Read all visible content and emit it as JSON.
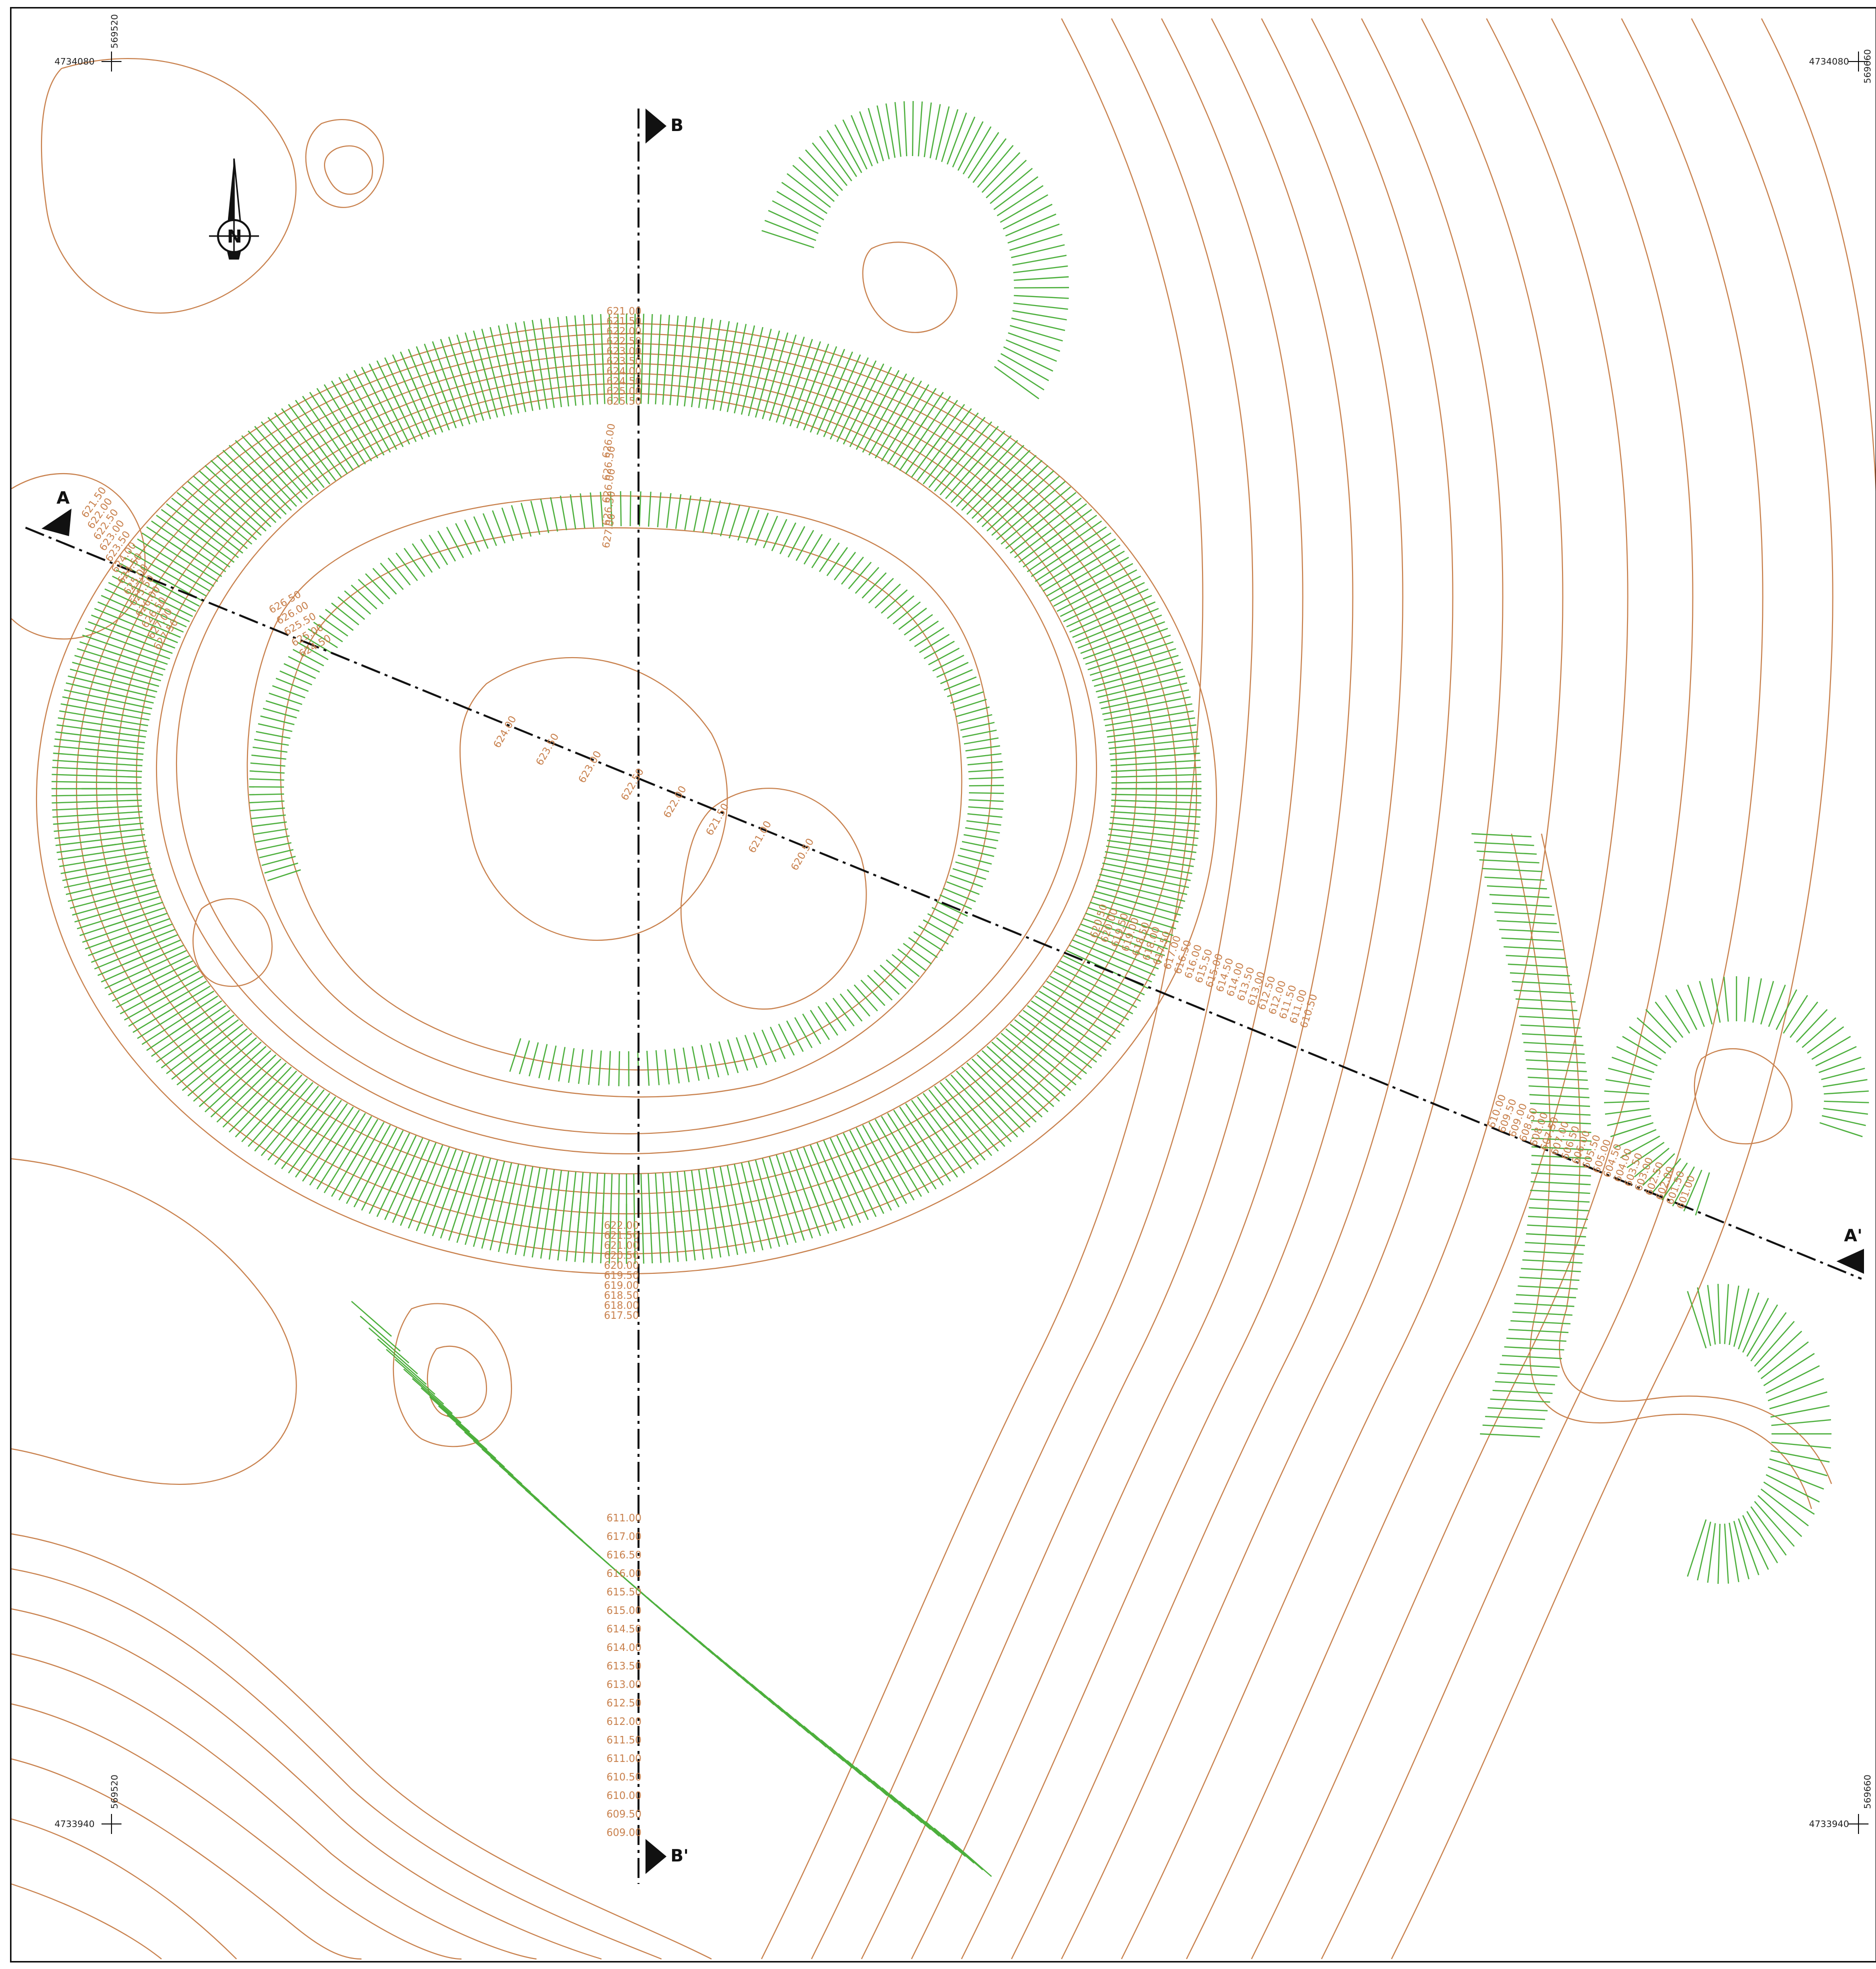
{
  "map": {
    "north_label": "N",
    "coords": {
      "tl_y": "4734080",
      "tl_x": "569520",
      "tr_y": "4734080",
      "tr_x": "569660",
      "bl_y": "4733940",
      "bl_x": "569520",
      "br_y": "4733940",
      "br_x": "569660"
    },
    "sections": {
      "a": "A",
      "a_prime": "A'",
      "b": "B",
      "b_prime": "B'"
    },
    "colors": {
      "contour": "#c8804c",
      "hachure": "#4caf3c",
      "line": "#111111"
    },
    "elevation_labels": {
      "top_stack": [
        "621.00",
        "621.50",
        "622.00",
        "622.50",
        "623.00",
        "623.50",
        "624.00",
        "624.50",
        "625.00",
        "625.50"
      ],
      "inner_n": [
        "626.00",
        "626.50",
        "626.00",
        "626.50",
        "627.00"
      ],
      "west_stack": [
        "621.50",
        "622.00",
        "622.50",
        "623.00",
        "623.50",
        "624.00",
        "624.50",
        "625.00",
        "625.50",
        "626.00",
        "626.50",
        "627.00",
        "627.50"
      ],
      "inner_w": [
        "626.50",
        "626.00",
        "625.50",
        "625.00",
        "624.50"
      ],
      "section_a": [
        "624.00",
        "623.50",
        "623.00",
        "622.50",
        "622.00",
        "621.50",
        "621.00",
        "620.50"
      ],
      "east_stack": [
        "620.50",
        "620.00",
        "619.50",
        "619.00",
        "618.50",
        "618.00",
        "617.50",
        "617.00",
        "616.50",
        "616.00",
        "615.50",
        "615.00",
        "614.50",
        "614.00",
        "613.50",
        "613.00",
        "612.50",
        "612.00",
        "611.50",
        "611.00",
        "610.50"
      ],
      "far_east": [
        "610.00",
        "609.50",
        "609.00",
        "608.50",
        "608.00",
        "607.50",
        "607.00",
        "606.50",
        "606.00",
        "605.50",
        "605.00",
        "604.50",
        "604.00",
        "603.50",
        "603.00",
        "602.50",
        "602.00",
        "601.50",
        "601.00"
      ],
      "south_stack": [
        "622.00",
        "621.50",
        "621.00",
        "620.50",
        "620.00",
        "619.50",
        "619.00",
        "618.50",
        "618.00",
        "617.50"
      ],
      "south_col": [
        "611.00",
        "617.00",
        "616.50",
        "616.00",
        "615.50",
        "615.00",
        "614.50",
        "614.00",
        "613.50",
        "613.00",
        "612.50",
        "612.00",
        "611.50",
        "611.00",
        "610.50",
        "610.00",
        "609.50",
        "609.00"
      ]
    }
  }
}
